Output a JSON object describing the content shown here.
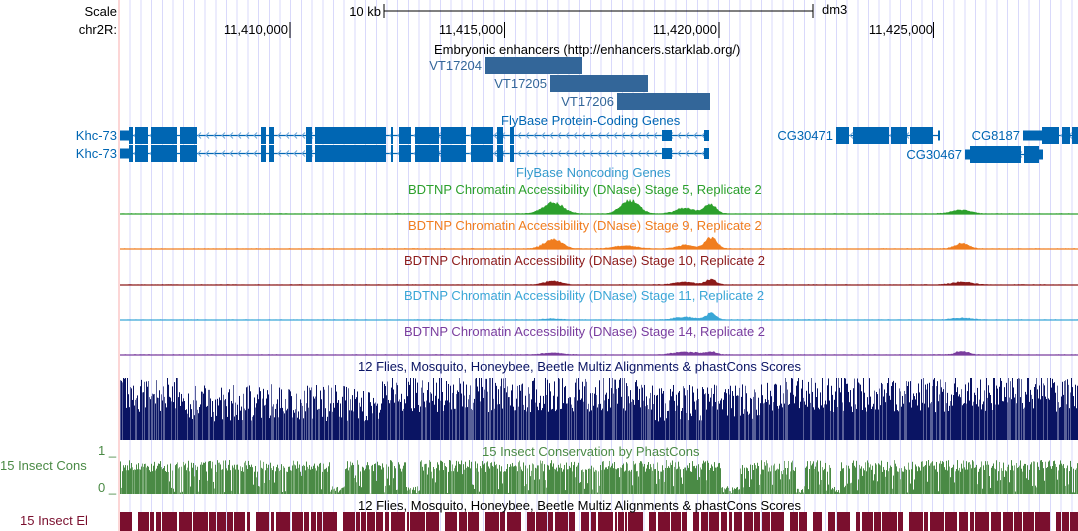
{
  "ruler": {
    "scale_label": "Scale",
    "scale_bar_text": "10 kb",
    "assembly": "dm3",
    "chrom_label": "chr2R:",
    "ticks": [
      {
        "pos": 11410000,
        "label": "11,410,000"
      },
      {
        "pos": 11415000,
        "label": "11,415,000"
      },
      {
        "pos": 11420000,
        "label": "11,420,000"
      },
      {
        "pos": 11425000,
        "label": "11,425,000"
      }
    ]
  },
  "enhancers": {
    "title": "Embryonic enhancers (http://enhancers.starklab.org/)",
    "color": "#336699",
    "items": [
      {
        "name": "VT17204"
      },
      {
        "name": "VT17205"
      },
      {
        "name": "VT17206"
      }
    ]
  },
  "genes": {
    "title": "FlyBase Protein-Coding Genes",
    "noncoding_title": "FlyBase Noncoding Genes",
    "color": "#0066b3",
    "items": [
      {
        "name": "Khc-73",
        "strand": "-"
      },
      {
        "name": "Khc-73",
        "strand": "-"
      },
      {
        "name": "CG30471",
        "strand": "-"
      },
      {
        "name": "CG8187",
        "strand": "-"
      },
      {
        "name": "CG30467",
        "strand": "-"
      }
    ]
  },
  "dnase_tracks": [
    {
      "title": "BDTNP Chromatin Accessibility (DNase) Stage 5, Replicate 2",
      "color": "#2ca02c"
    },
    {
      "title": "BDTNP Chromatin Accessibility (DNase) Stage 9, Replicate 2",
      "color": "#f07d1f"
    },
    {
      "title": "BDTNP Chromatin Accessibility (DNase) Stage 10, Replicate 2",
      "color": "#8c1a1a"
    },
    {
      "title": "BDTNP Chromatin Accessibility (DNase) Stage 11, Replicate 2",
      "color": "#3aa6d6"
    },
    {
      "title": "BDTNP Chromatin Accessibility (DNase) Stage 14, Replicate 2",
      "color": "#7a3d9e"
    }
  ],
  "multiz": {
    "title": "12 Flies, Mosquito, Honeybee, Beetle Multiz Alignments & phastCons Scores",
    "color": "#0a1463"
  },
  "cons": {
    "title": "15 Insect Conservation by PhastCons",
    "side_label": "15 Insect Cons",
    "ymax_label": "1 _",
    "ymin_label": "0 _",
    "color": "#4a8a45"
  },
  "elements": {
    "title": "12 Flies, Mosquito, Honeybee, Beetle Multiz Alignments & phastCons Scores",
    "side_label": "15 Insect El",
    "color": "#7a0f2e"
  }
}
